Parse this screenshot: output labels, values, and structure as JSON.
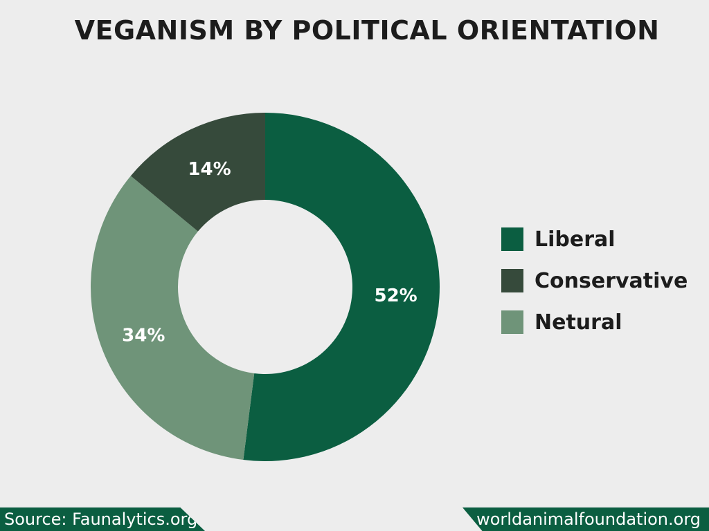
{
  "chart_data": {
    "type": "pie",
    "donut": true,
    "title": "VEGANISM BY POLITICAL ORIENTATION",
    "categories": [
      "Liberal",
      "Neutral",
      "Conservative"
    ],
    "series": [
      {
        "values": [
          52,
          34,
          14
        ],
        "labels": [
          "52%",
          "34%",
          "14%"
        ],
        "colors": [
          "#0b5e41",
          "#6f9479",
          "#364a3b"
        ]
      }
    ],
    "legend": {
      "position": "right",
      "items": [
        {
          "label": "Liberal",
          "color": "#0b5e41"
        },
        {
          "label": "Conservative",
          "color": "#364a3b"
        },
        {
          "label": "Netural",
          "color": "#6f9479"
        }
      ]
    }
  },
  "footer": {
    "source": "Source: Faunalytics.org",
    "site": "worldanimalfoundation.org"
  }
}
